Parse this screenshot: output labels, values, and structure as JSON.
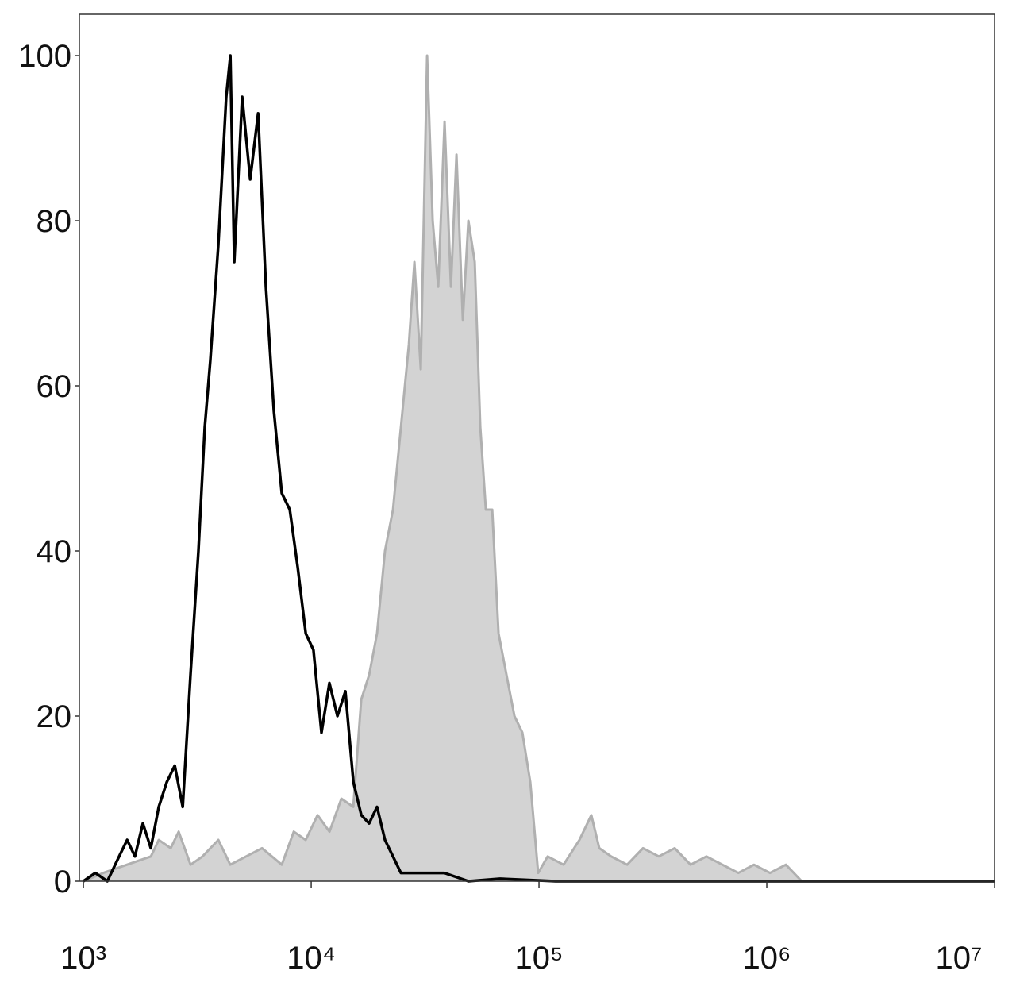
{
  "chart_data": {
    "type": "histogram-overlay",
    "xscale": "log",
    "xlim": [
      960,
      10000000
    ],
    "ylim": [
      0,
      105
    ],
    "xticks": [
      {
        "value": 1000,
        "label": "10³"
      },
      {
        "value": 10000,
        "label": "10⁴"
      },
      {
        "value": 100000,
        "label": "10⁵"
      },
      {
        "value": 1000000,
        "label": "10⁶"
      },
      {
        "value": 10000000,
        "label": "10⁷"
      }
    ],
    "yticks": [
      0,
      20,
      40,
      60,
      80,
      100
    ],
    "series": [
      {
        "color": "#b0b0b0",
        "fill": "#d3d3d3",
        "x": [
          1000,
          1222,
          1554,
          1978,
          2142,
          2417,
          2619,
          2954,
          3332,
          3911,
          4412,
          5179,
          6081,
          7430,
          8382,
          9454,
          10664,
          12029,
          13567,
          15305,
          16581,
          17962,
          19458,
          21086,
          22855,
          24760,
          26829,
          28379,
          30260,
          32270,
          34132,
          36105,
          38503,
          41048,
          43425,
          46308,
          48980,
          52228,
          55245,
          58440,
          62316,
          66437,
          71975,
          77983,
          84513,
          91574,
          99197,
          109220,
          128230,
          150520,
          169820,
          184000,
          207500,
          243700,
          286100,
          335700,
          394300,
          462900,
          543300,
          638300,
          749900,
          879000,
          1033000,
          1213000,
          1423000,
          10000000
        ],
        "values": [
          0,
          1,
          2,
          3,
          5,
          4,
          6,
          2,
          3,
          5,
          2,
          3,
          4,
          2,
          6,
          5,
          8,
          6,
          10,
          9,
          22,
          25,
          30,
          40,
          45,
          55,
          65,
          75,
          62,
          100,
          80,
          72,
          92,
          72,
          88,
          68,
          80,
          75,
          55,
          45,
          45,
          30,
          25,
          20,
          18,
          12,
          1,
          3,
          2,
          5,
          8,
          4,
          3,
          2,
          4,
          3,
          4,
          2,
          3,
          2,
          1,
          2,
          1,
          2,
          0,
          0
        ]
      },
      {
        "color": "#000000",
        "x": [
          1000,
          1128,
          1273,
          1435,
          1556,
          1683,
          1824,
          1976,
          2142,
          2322,
          2518,
          2729,
          2951,
          3199,
          3412,
          3606,
          3908,
          4236,
          4416,
          4592,
          4977,
          5395,
          5848,
          6324,
          6855,
          7430,
          8054,
          8730,
          9462,
          10233,
          11092,
          12023,
          13032,
          14125,
          15311,
          16596,
          17947,
          19454,
          21086,
          22856,
          24774,
          27925,
          32810,
          38459,
          48978,
          67453,
          118304,
          10000000
        ],
        "values": [
          0,
          1,
          0,
          3,
          5,
          3,
          7,
          4,
          9,
          12,
          14,
          9,
          25,
          40,
          55,
          63,
          77,
          95,
          100,
          75,
          95,
          85,
          93,
          72,
          57,
          47,
          45,
          38,
          30,
          28,
          18,
          24,
          20,
          23,
          12,
          8,
          7,
          9,
          5,
          3,
          1,
          1,
          1,
          1,
          0,
          0.3,
          0,
          0
        ]
      }
    ]
  }
}
